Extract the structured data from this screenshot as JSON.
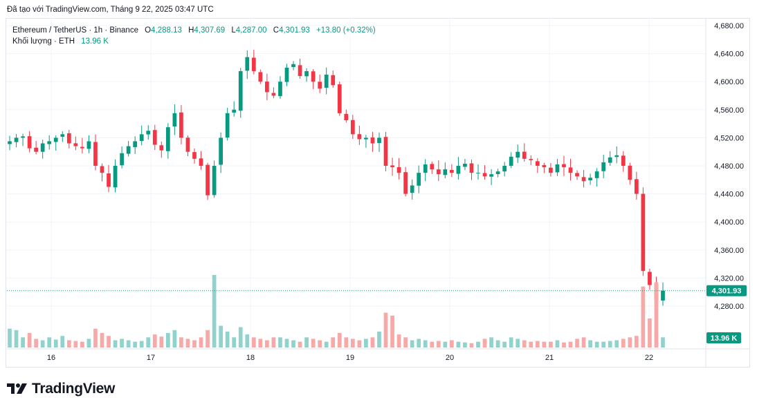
{
  "header": {
    "text": "Đã tạo với TradingView.com, Tháng 9 22, 2025 03:47 UTC"
  },
  "legend": {
    "symbol": "Ethereum / TetherUS · 1h · Binance",
    "o_label": "O",
    "o_value": "4,288.13",
    "h_label": "H",
    "h_value": "4,307.69",
    "l_label": "L",
    "l_value": "4,287.00",
    "c_label": "C",
    "c_value": "4,301.93",
    "change": "+13.80 (+0.32%)",
    "volume_label": "Khối lượng · ETH",
    "volume_value": "13.96 K"
  },
  "brand": {
    "name": "TradingView",
    "icon": "tradingview-logo-icon"
  },
  "colors": {
    "up": "#089981",
    "down": "#f23645",
    "up_vol": "#92d2cc",
    "down_vol": "#f7a9a7",
    "grid": "#f0f3fa",
    "text": "#131722"
  },
  "chart_data": {
    "type": "candlestick",
    "symbol": "Ethereum / TetherUS",
    "interval": "1h",
    "exchange": "Binance",
    "y_axis": {
      "ticks": [
        "4,680.00",
        "4,640.00",
        "4,600.00",
        "4,560.00",
        "4,520.00",
        "4,480.00",
        "4,440.00",
        "4,400.00",
        "4,360.00",
        "4,320.00",
        "4,280.00"
      ],
      "range": [
        4240,
        4695
      ]
    },
    "x_axis": {
      "ticks": [
        "16",
        "17",
        "18",
        "19",
        "20",
        "21",
        "22"
      ]
    },
    "last_price_label": "4,301.93",
    "last_volume_label": "13.96 K",
    "anchors": [
      [
        4515,
        4520,
        4522,
        4505,
        4500,
        4512,
        4515,
        4520,
        4525,
        4512,
        4508,
        4505,
        4515,
        4480,
        4470,
        4450,
        4480,
        4498,
        4508,
        4515,
        4525,
        4530,
        4510,
        4502,
        4535,
        4555,
        4520,
        4500,
        4490,
        4480,
        4438,
        4480,
        4520,
        4555,
        4560,
        4615,
        4635,
        4615,
        4600,
        4585,
        4580,
        4600,
        4620,
        4625,
        4608,
        4615,
        4600,
        4590,
        4610,
        4595,
        4555,
        4545,
        4525,
        4518,
        4520,
        4512,
        4520,
        4480,
        4478,
        4470,
        4440,
        4452,
        4470,
        4482,
        4475,
        4468,
        4475,
        4470,
        4480,
        4483,
        4470,
        4470,
        4465,
        4468,
        4472,
        4480,
        4493,
        4500,
        4490,
        4488,
        4480,
        4478,
        4470,
        4482,
        4478,
        4470,
        4465,
        4458,
        4463,
        4472,
        4485,
        4492,
        4495,
        4480,
        4460,
        4440,
        4330,
        4310,
        4288,
        4302
      ],
      [
        4515,
        4520,
        4522,
        4505,
        4500,
        4512,
        4515,
        4520,
        4525,
        4512,
        4508,
        4505,
        4515,
        4480,
        4470,
        4450,
        4480,
        4498,
        4508,
        4515,
        4525,
        4530,
        4510,
        4502,
        4535,
        4555,
        4520,
        4500,
        4490,
        4480,
        4438,
        4480,
        4520,
        4555,
        4560,
        4615,
        4635,
        4615,
        4600,
        4585,
        4580,
        4600,
        4620,
        4625,
        4608,
        4615,
        4600,
        4590,
        4610,
        4595,
        4555,
        4545,
        4525,
        4518,
        4520,
        4512,
        4520,
        4480,
        4478,
        4470,
        4440,
        4452,
        4470,
        4482,
        4475,
        4468,
        4475,
        4470,
        4480,
        4483,
        4470,
        4470,
        4465,
        4468,
        4472,
        4480,
        4493,
        4500,
        4490,
        4488,
        4480,
        4478,
        4470,
        4482,
        4478,
        4470,
        4465,
        4458,
        4463,
        4472,
        4485,
        4492,
        4495,
        4480,
        4460,
        4440,
        4330,
        4310,
        4288,
        4302
      ]
    ],
    "volume": [
      26,
      24,
      14,
      20,
      12,
      10,
      14,
      11,
      16,
      10,
      9,
      8,
      12,
      26,
      20,
      16,
      10,
      12,
      10,
      8,
      9,
      14,
      18,
      15,
      20,
      24,
      14,
      12,
      10,
      14,
      24,
      100,
      30,
      22,
      14,
      28,
      18,
      14,
      12,
      10,
      14,
      14,
      12,
      10,
      8,
      14,
      12,
      10,
      8,
      14,
      20,
      14,
      12,
      10,
      12,
      14,
      22,
      48,
      44,
      18,
      14,
      10,
      12,
      10,
      8,
      9,
      8,
      10,
      8,
      7,
      6,
      8,
      12,
      14,
      10,
      8,
      14,
      12,
      10,
      8,
      9,
      8,
      8,
      10,
      7,
      8,
      12,
      14,
      10,
      8,
      8,
      9,
      10,
      12,
      14,
      16,
      84,
      40,
      90,
      14
    ]
  }
}
